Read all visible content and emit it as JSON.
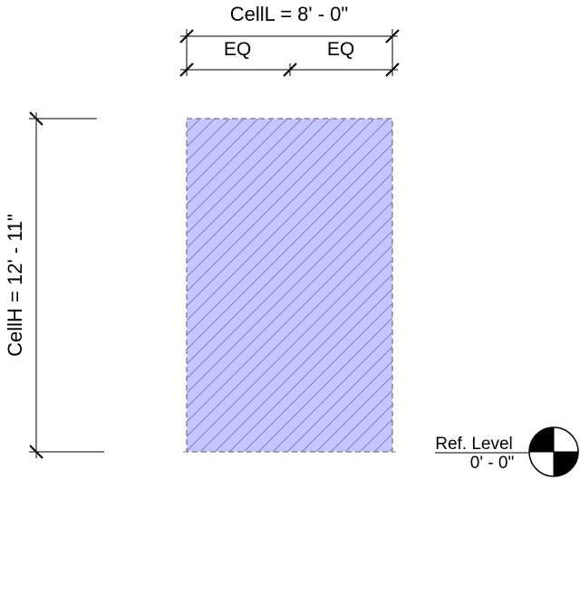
{
  "dimensions": {
    "width_label": "CellL = 8' - 0\"",
    "eq_left": "EQ",
    "eq_right": "EQ",
    "height_label": "CellH = 12' - 11\""
  },
  "level": {
    "name": "Ref. Level",
    "elevation": "0' - 0\""
  },
  "colors": {
    "fill": "#c5c5ff",
    "hatch": "#6a6ad8",
    "outline": "#888888",
    "lines": "#000000"
  },
  "icons": {
    "level_marker": "level-head-quadrant-icon"
  }
}
